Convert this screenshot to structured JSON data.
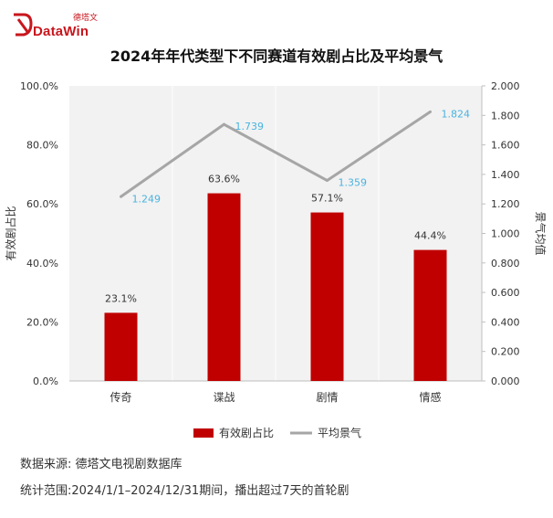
{
  "brand": {
    "name_cn": "德塔文",
    "name_en": "DataWin",
    "color": "#c8161d"
  },
  "chart_data": {
    "type": "bar+line",
    "title": "2024年年代类型下不同赛道有效剧占比及平均景气",
    "categories": [
      "传奇",
      "谍战",
      "剧情",
      "情感"
    ],
    "series": [
      {
        "name": "有效剧占比",
        "type": "bar",
        "axis": "left",
        "values": [
          23.1,
          63.6,
          57.1,
          44.4
        ],
        "labels": [
          "23.1%",
          "63.6%",
          "57.1%",
          "44.4%"
        ],
        "color": "#c00000"
      },
      {
        "name": "平均景气",
        "type": "line",
        "axis": "right",
        "values": [
          1.249,
          1.739,
          1.359,
          1.824
        ],
        "labels": [
          "1.249",
          "1.739",
          "1.359",
          "1.824"
        ],
        "color": "#a6a6a6",
        "label_color": "#4ab3e0"
      }
    ],
    "y_left": {
      "label": "有效剧占比",
      "lim": [
        0,
        100
      ],
      "ticks": [
        "0.0%",
        "20.0%",
        "40.0%",
        "60.0%",
        "80.0%",
        "100.0%"
      ]
    },
    "y_right": {
      "label": "景气均值",
      "lim": [
        0,
        2
      ],
      "ticks": [
        "0.000",
        "0.200",
        "0.400",
        "0.600",
        "0.800",
        "1.000",
        "1.200",
        "1.400",
        "1.600",
        "1.800",
        "2.000"
      ]
    },
    "legend_position": "bottom",
    "plot_background": "#f2f2f2"
  },
  "footer": {
    "source": "数据来源: 德塔文电视剧数据库",
    "range": "统计范围:2024/1/1–2024/12/31期间，播出超过7天的首轮剧"
  }
}
